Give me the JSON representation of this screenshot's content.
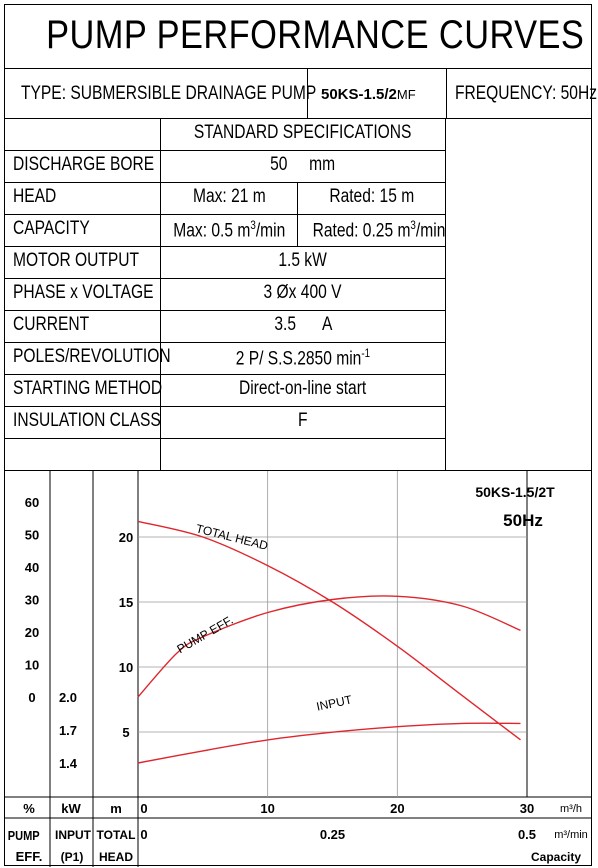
{
  "title": "PUMP PERFORMANCE CURVES",
  "type_label": "TYPE: SUBMERSIBLE  DRAINAGE  PUMP",
  "model_code": "50KS-1.5/2",
  "model_suffix": "MF",
  "frequency_label": "FREQUENCY: 50Hz",
  "spec_header": "STANDARD SPECIFICATIONS",
  "specs": {
    "discharge_bore": {
      "label": "DISCHARGE BORE",
      "value": "50",
      "unit": "mm"
    },
    "head": {
      "label": "HEAD",
      "max": "Max: 21 m",
      "rated": "Rated: 15 m"
    },
    "capacity": {
      "label": "CAPACITY",
      "max_prefix": "Max: 0.5 m",
      "max_sup": "3",
      "max_suffix": "/min",
      "rated_prefix": "Rated: 0.25 m",
      "rated_sup": "3",
      "rated_suffix": "/min"
    },
    "motor_output": {
      "label": "MOTOR OUTPUT",
      "value": "1.5  kW"
    },
    "phase_voltage": {
      "label": "PHASE x VOLTAGE",
      "value": "3 Øx 400  V"
    },
    "current": {
      "label": "CURRENT",
      "value": "3.5",
      "unit": "A"
    },
    "poles": {
      "label": "POLES/REVOLUTION",
      "value": "2 P/ S.S.2850 min",
      "sup": "-1"
    },
    "starting": {
      "label": "STARTING METHOD",
      "value": "Direct-on-line start"
    },
    "insulation": {
      "label": "INSULATION CLASS",
      "value": "F"
    }
  },
  "chart_data": {
    "type": "line",
    "model": "50KS-1.5/2T",
    "frequency": "50Hz",
    "x_unit_primary": "m³/h",
    "x_unit_secondary": "m³/min",
    "x_caption": "Capacity",
    "x_ticks_primary": [
      "0",
      "10",
      "20",
      "30"
    ],
    "x_ticks_secondary": [
      "0",
      "0.25",
      "0.5"
    ],
    "xlim": [
      0,
      30
    ],
    "y_axes": {
      "efficiency": {
        "unit": "%",
        "label_top": "PUMP",
        "label_bottom": "EFF.",
        "ticks": [
          "60",
          "50",
          "40",
          "30",
          "20",
          "10",
          "0"
        ],
        "range": [
          0,
          60
        ]
      },
      "input": {
        "unit": "kW",
        "label_top": "INPUT",
        "label_bottom": "(P1)",
        "ticks": [
          "2.0",
          "1.7",
          "1.4"
        ],
        "range": [
          1.4,
          2.0
        ]
      },
      "head": {
        "unit": "m",
        "label_top": "TOTAL",
        "label_bottom": "HEAD",
        "ticks": [
          "20",
          "15",
          "10",
          "5"
        ],
        "range": [
          0,
          25
        ]
      }
    },
    "series": [
      {
        "name": "TOTAL HEAD",
        "axis": "head",
        "x": [
          0,
          5,
          10,
          15,
          20,
          25,
          29.5
        ],
        "y": [
          21.2,
          20.0,
          17.8,
          15.0,
          11.6,
          7.8,
          4.4
        ]
      },
      {
        "name": "PUMP EFF.",
        "axis": "efficiency",
        "x": [
          0,
          3,
          5,
          10,
          15,
          20,
          25,
          29.5
        ],
        "y": [
          0,
          13.5,
          18.5,
          26,
          30,
          31,
          28,
          20.5
        ]
      },
      {
        "name": "INPUT",
        "axis": "input",
        "x": [
          0,
          5,
          10,
          15,
          20,
          25,
          29.5
        ],
        "y": [
          1.4,
          1.51,
          1.61,
          1.68,
          1.73,
          1.76,
          1.76
        ]
      }
    ],
    "curve_color": "#e0262d",
    "grid": true
  }
}
